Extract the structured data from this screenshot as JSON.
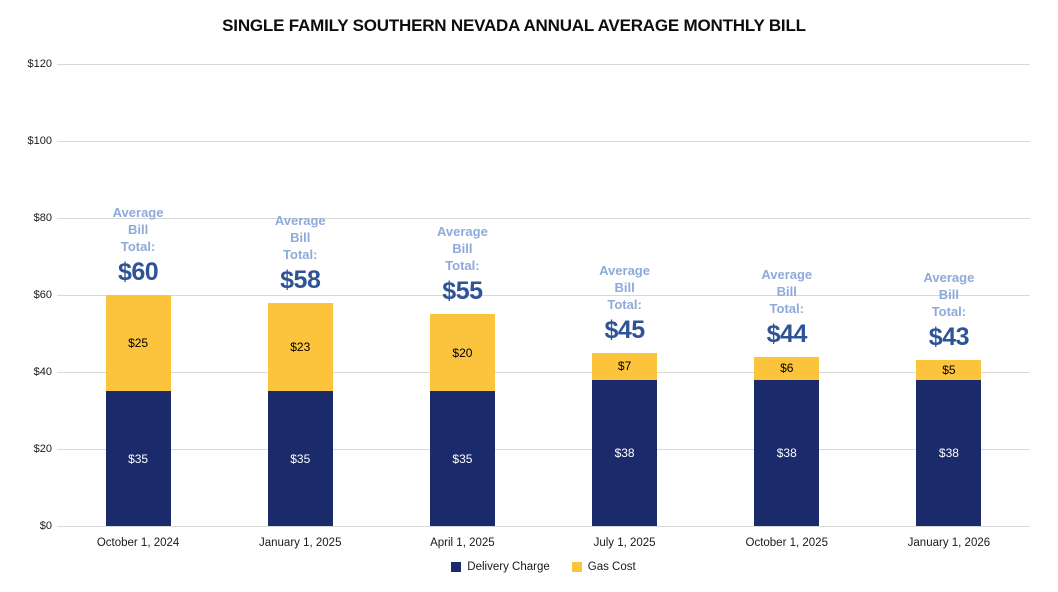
{
  "title": "SINGLE FAMILY SOUTHERN NEVADA ANNUAL AVERAGE MONTHLY BILL",
  "colors": {
    "delivery_charge": "#1b2a6b",
    "gas_cost": "#fcc43d",
    "avg_label_blue": "#8eaadb",
    "total_blue": "#2f5496",
    "gridline": "#d9d9d9",
    "segment_label_on_navy": "#ffffff",
    "segment_label_on_gold": "#000000"
  },
  "chart_data": {
    "type": "bar",
    "stacked": true,
    "title": "SINGLE FAMILY SOUTHERN NEVADA ANNUAL AVERAGE MONTHLY BILL",
    "categories": [
      "October 1, 2024",
      "January 1, 2025",
      "April 1, 2025",
      "July 1, 2025",
      "October 1, 2025",
      "January 1, 2026"
    ],
    "series": [
      {
        "name": "Delivery Charge",
        "color": "#1b2a6b",
        "values": [
          35,
          35,
          35,
          38,
          38,
          38
        ],
        "data_labels": [
          "$35",
          "$35",
          "$35",
          "$38",
          "$38",
          "$38"
        ],
        "label_color": "#ffffff"
      },
      {
        "name": "Gas Cost",
        "color": "#fcc43d",
        "values": [
          25,
          23,
          20,
          7,
          6,
          5
        ],
        "data_labels": [
          "$25",
          "$23",
          "$20",
          "$7",
          "$6",
          "$5"
        ],
        "label_color": "#000000"
      }
    ],
    "totals": [
      60,
      58,
      55,
      45,
      44,
      43
    ],
    "total_labels": [
      "$60",
      "$58",
      "$55",
      "$45",
      "$44",
      "$43"
    ],
    "annotation_lines": [
      "Average",
      "Bill",
      "Total:"
    ],
    "xlabel": "",
    "ylabel": "",
    "ylim": [
      0,
      120
    ],
    "y_tick_step": 20,
    "y_ticks": [
      "$0",
      "$20",
      "$40",
      "$60",
      "$80",
      "$100",
      "$120"
    ],
    "grid": true,
    "legend_position": "bottom",
    "legend": [
      "Delivery Charge",
      "Gas Cost"
    ]
  }
}
